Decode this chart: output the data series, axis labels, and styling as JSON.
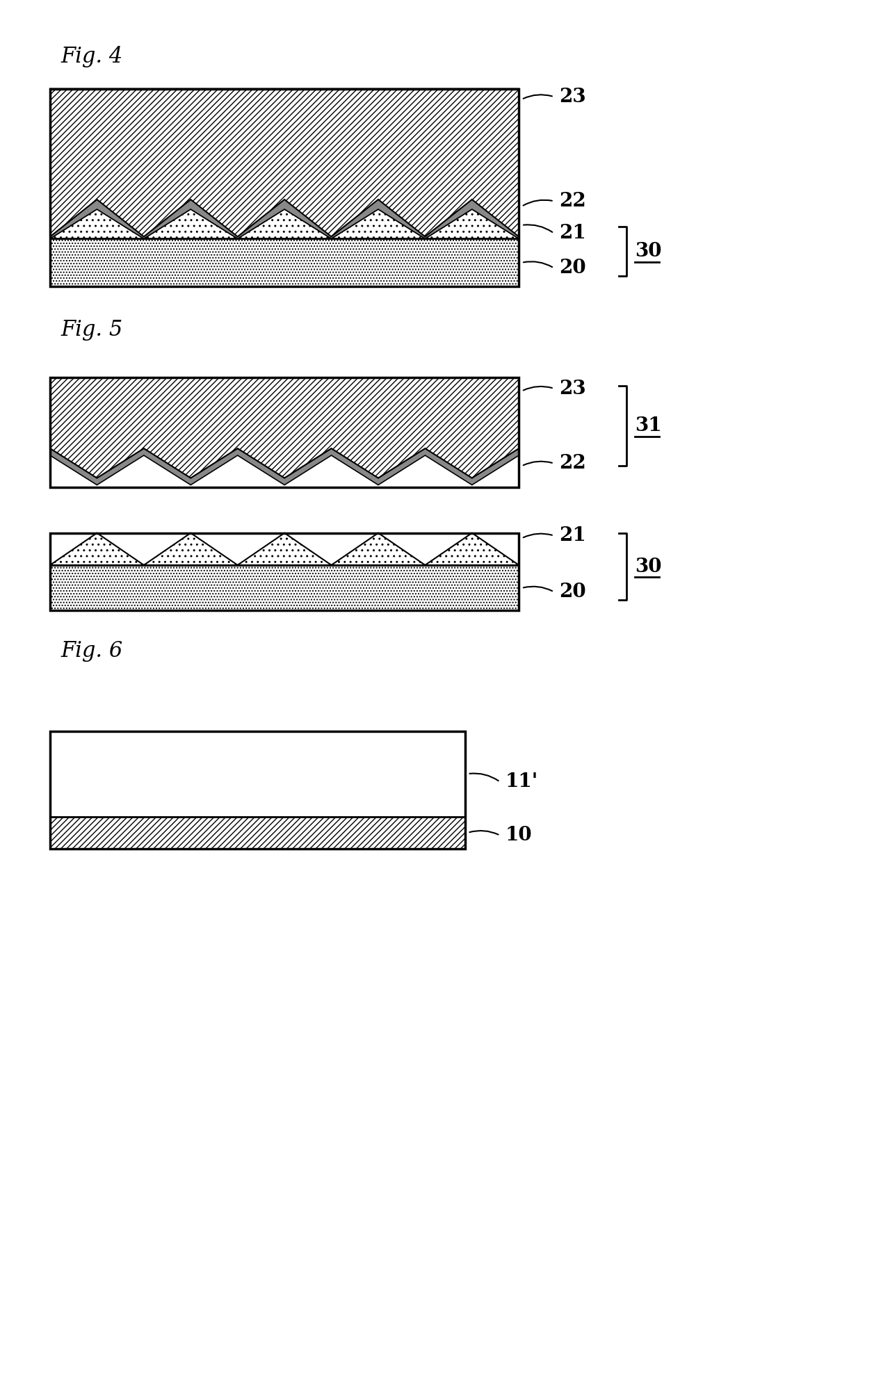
{
  "fig4_label": "Fig. 4",
  "fig5_label": "Fig. 5",
  "fig6_label": "Fig. 6",
  "background_color": "#ffffff"
}
